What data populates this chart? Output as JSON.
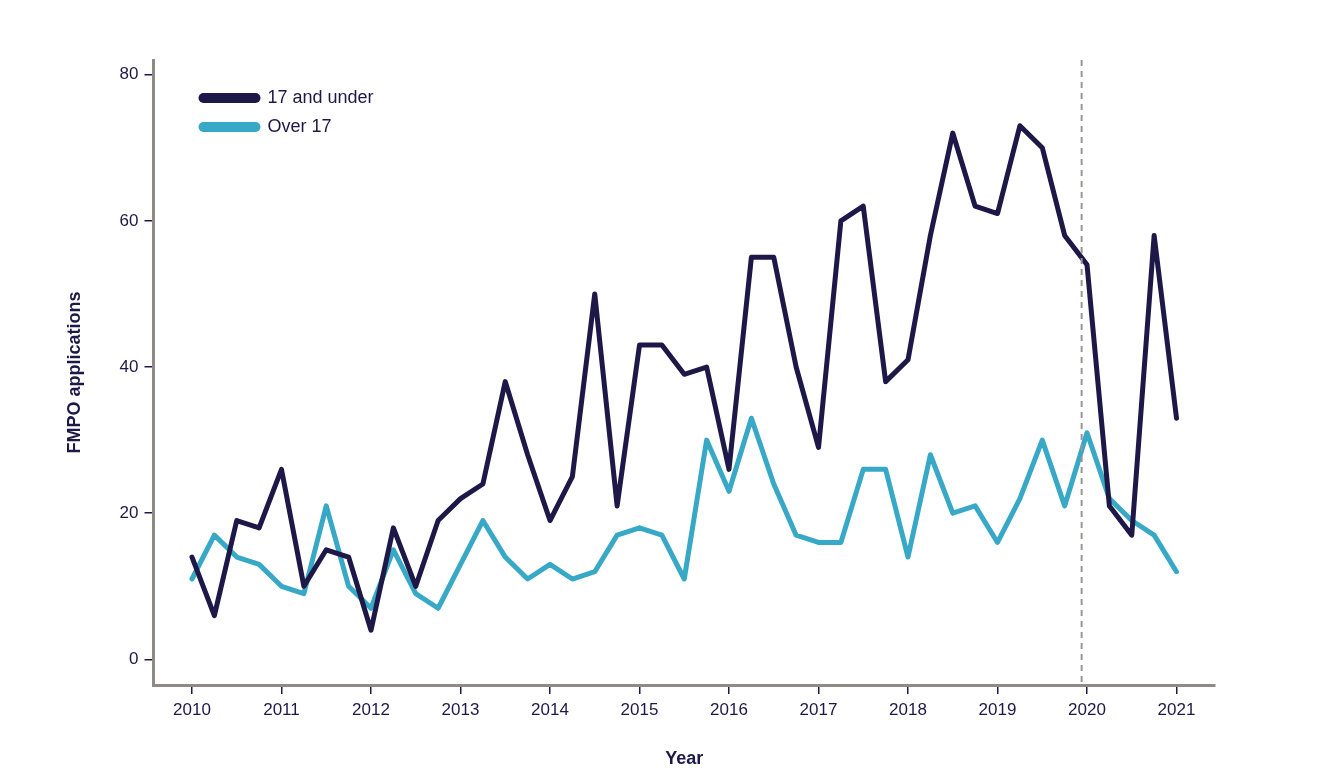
{
  "chart_data": {
    "type": "line",
    "xlabel": "Year",
    "ylabel": "FMPO applications",
    "x": [
      2010,
      2010.25,
      2010.5,
      2010.75,
      2011,
      2011.25,
      2011.5,
      2011.75,
      2012,
      2012.25,
      2012.5,
      2012.75,
      2013,
      2013.25,
      2013.5,
      2013.75,
      2014,
      2014.25,
      2014.5,
      2014.75,
      2015,
      2015.25,
      2015.5,
      2015.75,
      2016,
      2016.25,
      2016.5,
      2016.75,
      2017,
      2017.25,
      2017.5,
      2017.75,
      2018,
      2018.25,
      2018.5,
      2018.75,
      2019,
      2019.25,
      2019.5,
      2019.75,
      2020,
      2020.25,
      2020.5,
      2020.75,
      2021
    ],
    "series": [
      {
        "name": "17 and under",
        "color": "#1e1848",
        "values": [
          14,
          6,
          19,
          18,
          26,
          10,
          15,
          14,
          4,
          18,
          10,
          19,
          22,
          24,
          38,
          28,
          19,
          25,
          50,
          21,
          43,
          43,
          39,
          40,
          26,
          55,
          55,
          40,
          29,
          60,
          62,
          38,
          41,
          58,
          72,
          62,
          61,
          73,
          70,
          58,
          54,
          21,
          17,
          58,
          33
        ]
      },
      {
        "name": "Over 17",
        "color": "#37a8c6",
        "values": [
          11,
          17,
          14,
          13,
          10,
          9,
          21,
          10,
          7,
          15,
          9,
          7,
          13,
          19,
          14,
          11,
          13,
          11,
          12,
          17,
          18,
          17,
          11,
          30,
          23,
          33,
          24,
          17,
          16,
          16,
          26,
          26,
          14,
          28,
          20,
          21,
          16,
          22,
          30,
          21,
          31,
          22,
          19,
          17,
          12
        ]
      }
    ],
    "xlim": [
      2009.57,
      2021.43
    ],
    "ylim": [
      -3.5,
      82
    ],
    "xticks": [
      2010,
      2011,
      2012,
      2013,
      2014,
      2015,
      2016,
      2017,
      2018,
      2019,
      2020,
      2021
    ],
    "yticks": [
      0,
      20,
      40,
      60,
      80
    ],
    "ref_lines": [
      {
        "axis": "x",
        "value": 2019.94,
        "color": "#9a9590",
        "line_style": "dashed"
      }
    ],
    "grid": false,
    "legend": "top left",
    "marker": "none",
    "line_style": "solid"
  }
}
